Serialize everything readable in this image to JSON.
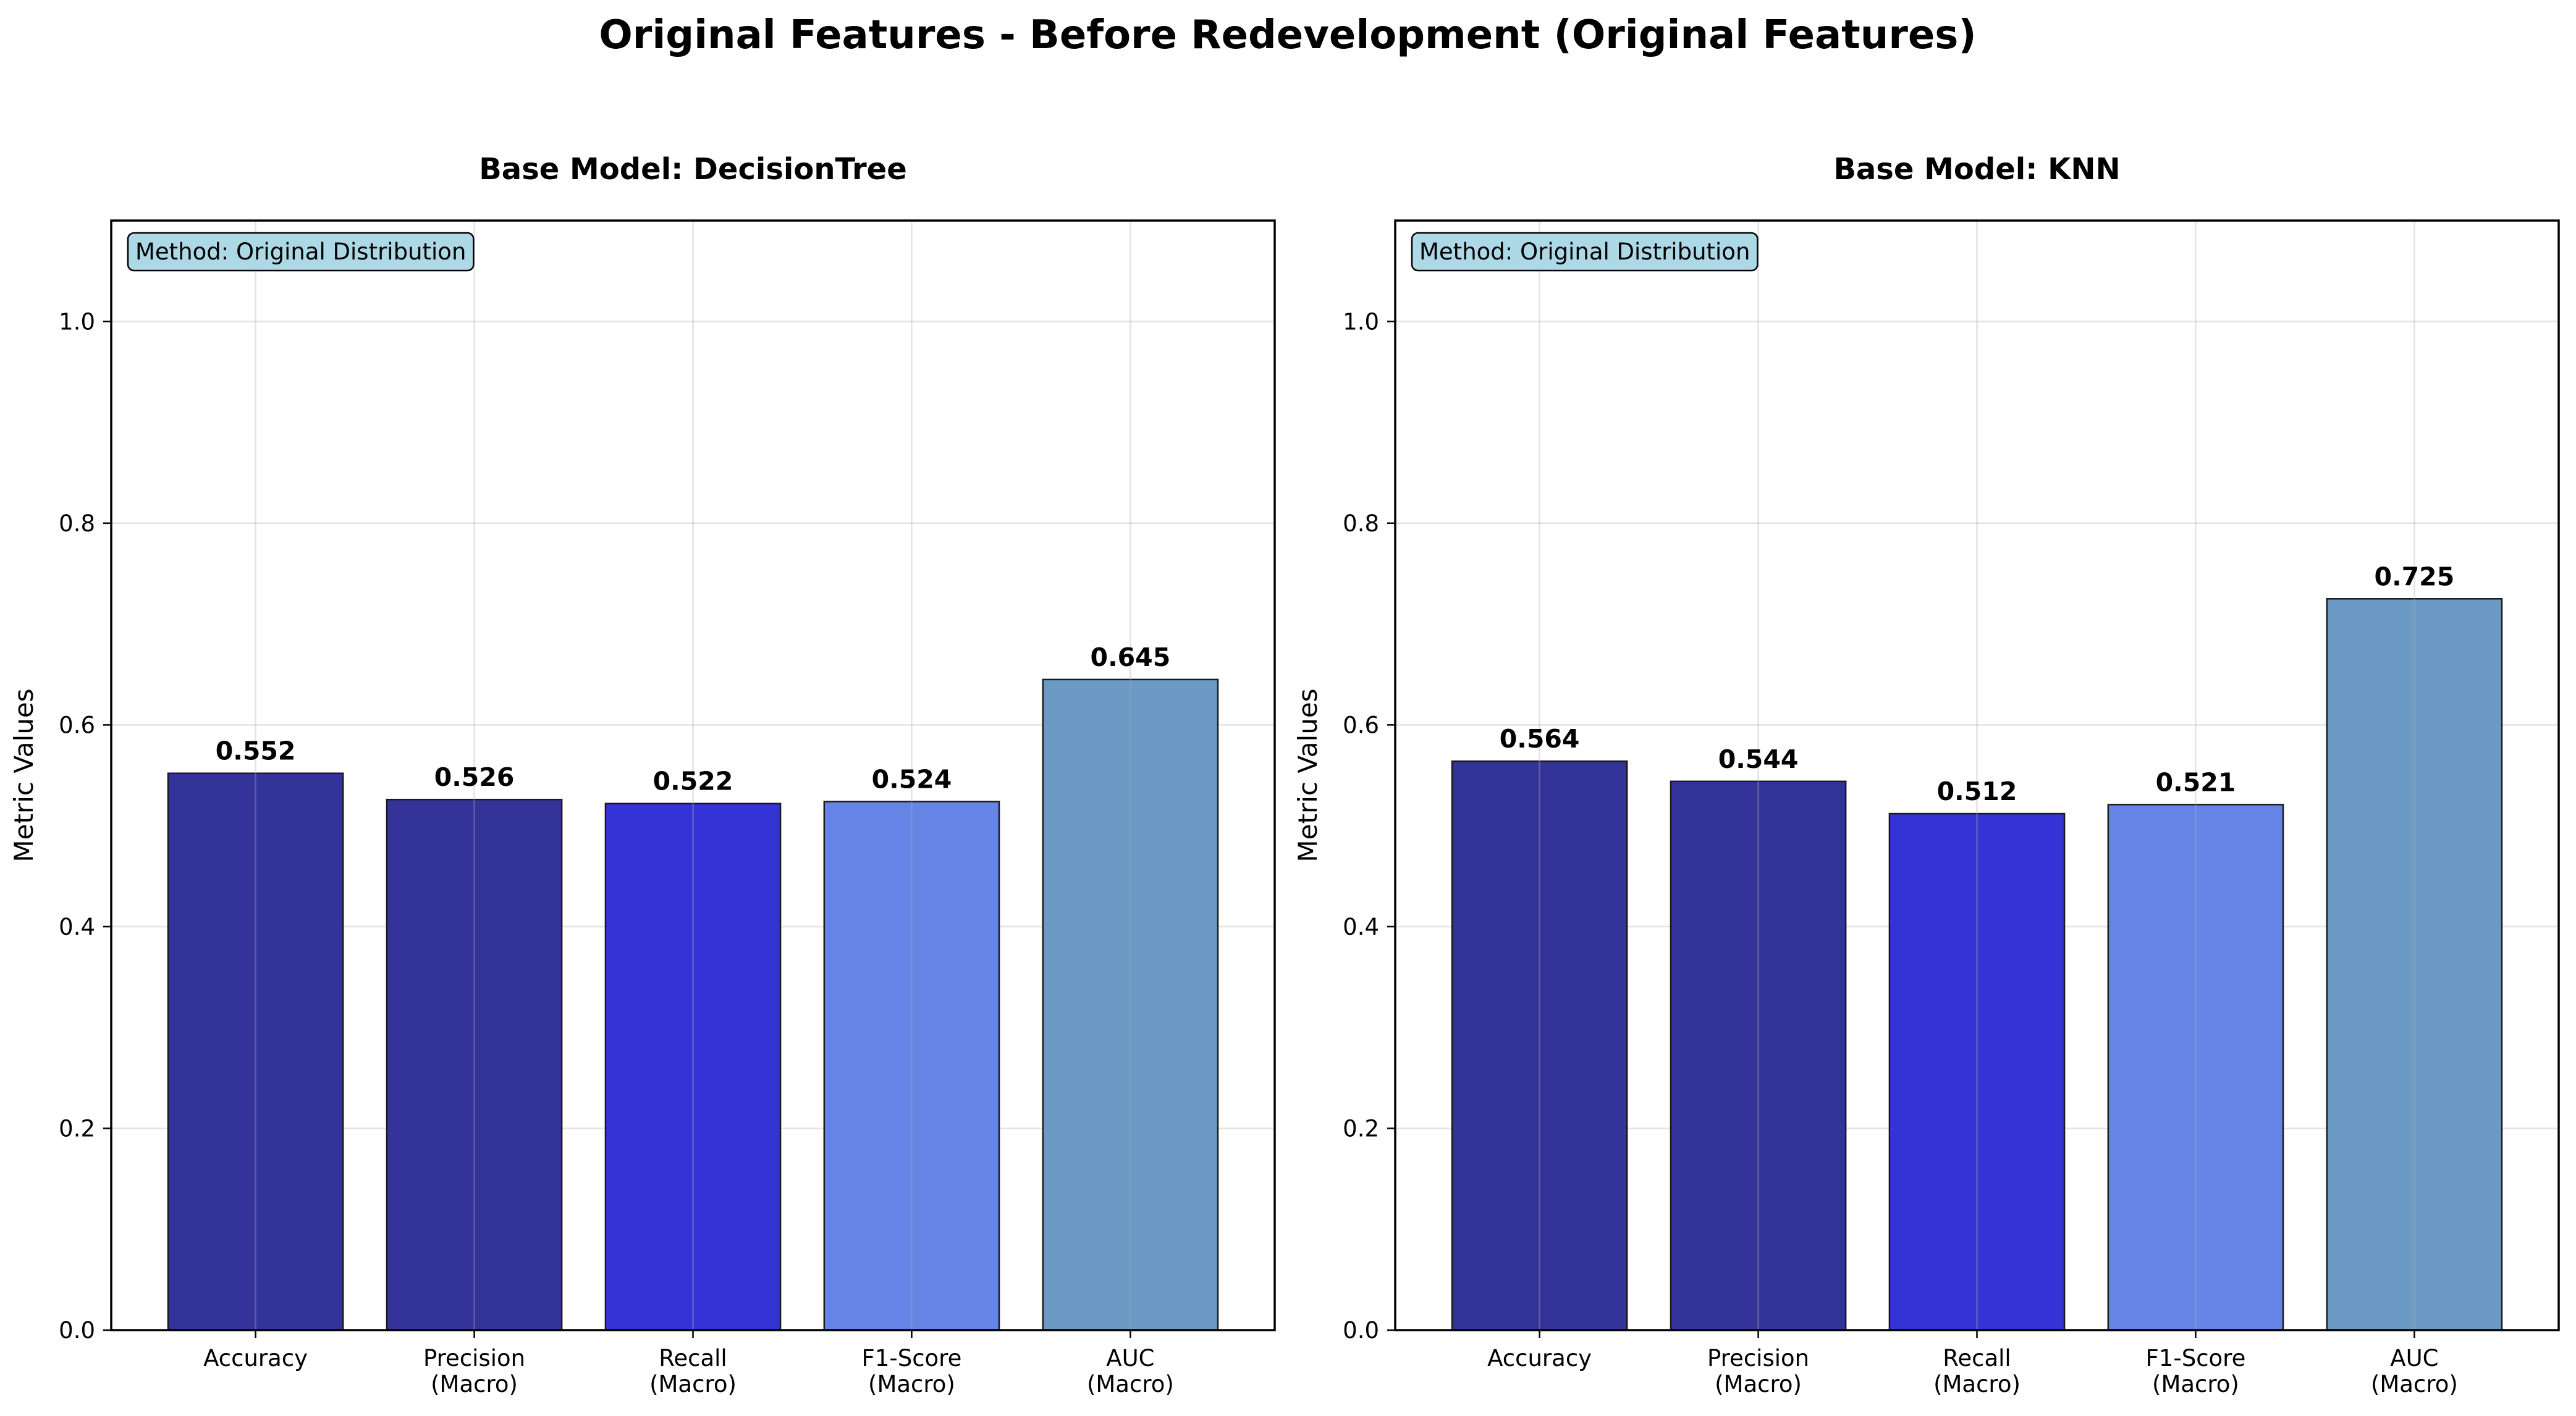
{
  "figure": {
    "title": "Original Features - Before Redevelopment (Original Features)"
  },
  "chart_data": [
    {
      "type": "bar",
      "title": "Base Model: DecisionTree",
      "ylabel": "Metric Values",
      "xlabel": "",
      "annotation": "Method: Original Distribution",
      "categories": [
        "Accuracy",
        "Precision\n(Macro)",
        "Recall\n(Macro)",
        "F1-Score\n(Macro)",
        "AUC\n(Macro)"
      ],
      "values": [
        0.552,
        0.526,
        0.522,
        0.524,
        0.645
      ],
      "value_labels": [
        "0.552",
        "0.526",
        "0.522",
        "0.524",
        "0.645"
      ],
      "bar_colors": [
        "#333399",
        "#333399",
        "#3333d6",
        "#6684e6",
        "#6b9bc4"
      ],
      "ylim": [
        0,
        1.1
      ],
      "yticks": [
        0.0,
        0.2,
        0.4,
        0.6,
        0.8,
        1.0
      ],
      "ytick_labels": [
        "0.0",
        "0.2",
        "0.4",
        "0.6",
        "0.8",
        "1.0"
      ],
      "grid": true
    },
    {
      "type": "bar",
      "title": "Base Model: KNN",
      "ylabel": "Metric Values",
      "xlabel": "",
      "annotation": "Method: Original Distribution",
      "categories": [
        "Accuracy",
        "Precision\n(Macro)",
        "Recall\n(Macro)",
        "F1-Score\n(Macro)",
        "AUC\n(Macro)"
      ],
      "values": [
        0.564,
        0.544,
        0.512,
        0.521,
        0.725
      ],
      "value_labels": [
        "0.564",
        "0.544",
        "0.512",
        "0.521",
        "0.725"
      ],
      "bar_colors": [
        "#333399",
        "#333399",
        "#3333d6",
        "#6684e6",
        "#6b9bc4"
      ],
      "ylim": [
        0,
        1.1
      ],
      "yticks": [
        0.0,
        0.2,
        0.4,
        0.6,
        0.8,
        1.0
      ],
      "ytick_labels": [
        "0.0",
        "0.2",
        "0.4",
        "0.6",
        "0.8",
        "1.0"
      ],
      "grid": true
    }
  ]
}
